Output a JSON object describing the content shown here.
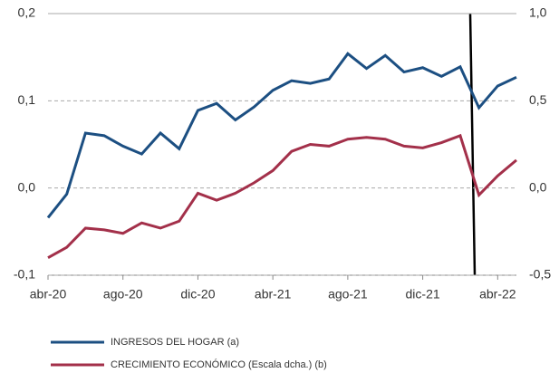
{
  "chart_data": {
    "type": "line",
    "categories": [
      "abr-20",
      null,
      null,
      null,
      "ago-20",
      null,
      null,
      null,
      "dic-20",
      null,
      null,
      null,
      "abr-21",
      null,
      null,
      null,
      "ago-21",
      null,
      null,
      null,
      "dic-21",
      null,
      null,
      null,
      "abr-22",
      null
    ],
    "series": [
      {
        "name": "INGRESOS DEL HOGAR (a)",
        "color": "#1c4f82",
        "values": [
          -0.034,
          -0.007,
          0.063,
          0.06,
          0.048,
          0.039,
          0.063,
          0.045,
          0.089,
          0.097,
          0.078,
          0.093,
          0.112,
          0.123,
          0.12,
          0.125,
          0.154,
          0.137,
          0.152,
          0.133,
          0.138,
          0.128,
          0.139,
          0.092,
          0.117,
          0.127
        ]
      },
      {
        "name": "CRECIMIENTO ECONÓMICO (Escala dcha.) (b)",
        "color": "#a3304a",
        "axis": "y2",
        "values": [
          -0.4,
          -0.34,
          -0.23,
          -0.24,
          -0.26,
          -0.2,
          -0.23,
          -0.19,
          -0.03,
          -0.07,
          -0.03,
          0.03,
          0.1,
          0.21,
          0.25,
          0.24,
          0.28,
          0.29,
          0.28,
          0.24,
          0.23,
          0.26,
          0.3,
          -0.04,
          0.07,
          0.16
        ]
      }
    ],
    "ylim": [
      -0.1,
      0.2
    ],
    "yticks": [
      {
        "value": -0.1,
        "label": "-0,1"
      },
      {
        "value": 0,
        "label": "0,0"
      },
      {
        "value": 0.1,
        "label": "0,1"
      },
      {
        "value": 0.2,
        "label": "0,2"
      }
    ],
    "y2lim": [
      -0.5,
      1.0
    ],
    "y2ticks": [
      {
        "value": -0.5,
        "label": "-0,5"
      },
      {
        "value": 0,
        "label": "0,0"
      },
      {
        "value": 0.5,
        "label": "0,5"
      },
      {
        "value": 1.0,
        "label": "1,0"
      }
    ],
    "grid": true
  }
}
